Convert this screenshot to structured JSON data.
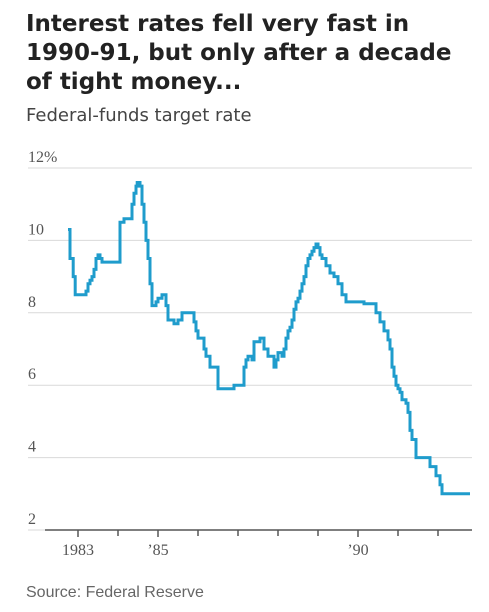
{
  "title": "Interest rates fell very fast in 1990-91, but only after a decade of tight money...",
  "subtitle": "Federal-funds target rate",
  "source": "Source: Federal Reserve",
  "colors": {
    "line": "#1f9ccc",
    "grid": "#d9d9d9",
    "axis": "#555555",
    "text": "#222222"
  },
  "chart_data": {
    "type": "line",
    "title": "Interest rates fell very fast in 1990-91, but only after a decade of tight money...",
    "ylabel": "Federal-funds target rate",
    "xlim": [
      1982.6,
      1992.85
    ],
    "ylim": [
      2,
      12
    ],
    "y_ticks": [
      {
        "value": 12,
        "label": "12%"
      },
      {
        "value": 10,
        "label": "10"
      },
      {
        "value": 8,
        "label": "8"
      },
      {
        "value": 6,
        "label": "6"
      },
      {
        "value": 4,
        "label": "4"
      },
      {
        "value": 2,
        "label": "2"
      }
    ],
    "x_ticks": [
      {
        "value": 1983,
        "label": "1983"
      },
      {
        "value": 1985,
        "label": "’85"
      },
      {
        "value": 1990,
        "label": "’90"
      }
    ],
    "x_minor_ticks": [
      1984,
      1986,
      1987,
      1988,
      1989,
      1991,
      1992
    ],
    "grid": true,
    "step": true,
    "series": [
      {
        "name": "",
        "x": [
          1982.75,
          1982.8,
          1982.88,
          1982.93,
          1983.2,
          1983.25,
          1983.3,
          1983.35,
          1983.4,
          1983.45,
          1983.5,
          1983.55,
          1983.6,
          1984.05,
          1984.1,
          1984.15,
          1984.3,
          1984.35,
          1984.4,
          1984.45,
          1984.48,
          1984.55,
          1984.6,
          1984.65,
          1984.7,
          1984.75,
          1984.8,
          1984.85,
          1984.9,
          1984.95,
          1985.0,
          1985.1,
          1985.2,
          1985.25,
          1985.3,
          1985.4,
          1985.5,
          1985.6,
          1985.9,
          1985.95,
          1986.0,
          1986.15,
          1986.2,
          1986.3,
          1986.5,
          1986.85,
          1986.9,
          1986.95,
          1987.0,
          1987.15,
          1987.2,
          1987.25,
          1987.35,
          1987.4,
          1987.55,
          1987.65,
          1987.75,
          1987.9,
          1987.95,
          1988.0,
          1988.1,
          1988.15,
          1988.2,
          1988.25,
          1988.3,
          1988.35,
          1988.4,
          1988.45,
          1988.5,
          1988.55,
          1988.6,
          1988.65,
          1988.7,
          1988.75,
          1988.8,
          1988.85,
          1988.9,
          1988.95,
          1989.0,
          1989.05,
          1989.1,
          1989.2,
          1989.3,
          1989.4,
          1989.5,
          1989.6,
          1989.7,
          1990.05,
          1990.15,
          1990.45,
          1990.55,
          1990.65,
          1990.75,
          1990.8,
          1990.85,
          1990.9,
          1990.95,
          1991.0,
          1991.05,
          1991.1,
          1991.2,
          1991.25,
          1991.3,
          1991.35,
          1991.45,
          1991.6,
          1991.8,
          1991.95,
          1992.05,
          1992.1,
          1992.8
        ],
        "values": [
          10.3,
          9.5,
          9.0,
          8.5,
          8.6,
          8.8,
          8.9,
          9.0,
          9.2,
          9.5,
          9.6,
          9.5,
          9.4,
          10.5,
          10.5,
          10.6,
          10.6,
          11.0,
          11.3,
          11.5,
          11.6,
          11.5,
          11.0,
          10.5,
          10.0,
          9.5,
          8.8,
          8.2,
          8.2,
          8.3,
          8.4,
          8.5,
          8.2,
          7.8,
          7.8,
          7.7,
          7.8,
          8.0,
          7.75,
          7.5,
          7.3,
          7.0,
          6.8,
          6.5,
          5.9,
          5.9,
          6.0,
          6.0,
          6.0,
          6.5,
          6.7,
          6.8,
          6.7,
          7.2,
          7.3,
          7.0,
          6.8,
          6.5,
          6.7,
          6.9,
          6.8,
          7.0,
          7.3,
          7.5,
          7.6,
          7.8,
          8.1,
          8.3,
          8.4,
          8.6,
          8.8,
          9.0,
          9.3,
          9.5,
          9.6,
          9.7,
          9.8,
          9.9,
          9.8,
          9.6,
          9.5,
          9.3,
          9.1,
          9.0,
          8.8,
          8.5,
          8.3,
          8.3,
          8.25,
          8.0,
          7.75,
          7.5,
          7.25,
          7.0,
          6.5,
          6.25,
          6.0,
          5.9,
          5.8,
          5.6,
          5.5,
          5.25,
          4.75,
          4.5,
          4.0,
          4.0,
          3.75,
          3.5,
          3.25,
          3.0,
          3.0
        ]
      }
    ]
  }
}
